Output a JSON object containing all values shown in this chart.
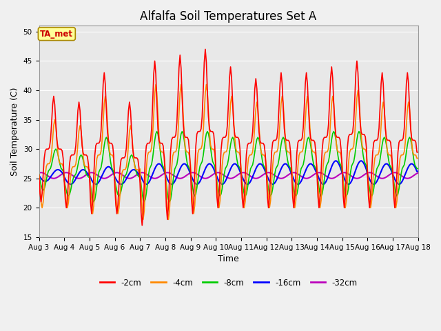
{
  "title": "Alfalfa Soil Temperatures Set A",
  "xlabel": "Time",
  "ylabel": "Soil Temperature (C)",
  "ylim": [
    15,
    51
  ],
  "yticks": [
    15,
    20,
    25,
    30,
    35,
    40,
    45,
    50
  ],
  "xlim_days": [
    3,
    18
  ],
  "xtick_days": [
    3,
    4,
    5,
    6,
    7,
    8,
    9,
    10,
    11,
    12,
    13,
    14,
    15,
    16,
    17,
    18
  ],
  "xtick_labels": [
    "Aug 3",
    "Aug 4",
    "Aug 5",
    "Aug 6",
    "Aug 7",
    "Aug 8",
    "Aug 9",
    "Aug 10",
    "Aug 11",
    "Aug 12",
    "Aug 13",
    "Aug 14",
    "Aug 15",
    "Aug 16",
    "Aug 17",
    "Aug 18"
  ],
  "annotation_text": "TA_met",
  "annotation_color": "#cc0000",
  "annotation_bg": "#ffff99",
  "annotation_border": "#aa8800",
  "series_colors": [
    "#ff0000",
    "#ff8800",
    "#00cc00",
    "#0000ff",
    "#bb00bb"
  ],
  "series_labels": [
    "-2cm",
    "-4cm",
    "-8cm",
    "-16cm",
    "-32cm"
  ],
  "bg_color": "#f0f0f0",
  "plot_bg": "#e8e8e8",
  "grid_color": "#ffffff",
  "title_fontsize": 12,
  "axis_label_fontsize": 9,
  "tick_fontsize": 7.5,
  "legend_fontsize": 8.5,
  "peak_2cm": [
    39,
    38,
    43,
    38,
    45,
    46,
    47,
    44,
    42,
    43,
    43,
    44,
    45,
    43,
    43
  ],
  "trough_2cm": [
    21,
    20,
    19,
    19,
    17,
    18,
    19,
    20,
    20,
    20,
    20,
    20,
    20,
    20,
    20
  ],
  "peak_4cm": [
    35,
    34,
    39,
    34,
    41,
    41,
    41,
    39,
    38,
    39,
    39,
    39,
    40,
    38,
    38
  ],
  "trough_4cm": [
    20,
    20,
    19,
    19,
    18,
    18,
    19,
    20,
    20,
    20,
    20,
    20,
    20,
    20,
    20
  ],
  "peak_8cm": [
    30,
    29,
    32,
    29,
    33,
    33,
    33,
    32,
    32,
    32,
    32,
    33,
    33,
    32,
    32
  ],
  "trough_8cm": [
    23,
    22,
    21,
    22,
    21,
    21,
    22,
    22,
    22,
    22,
    22,
    22,
    22,
    22,
    22
  ],
  "peak_16cm": [
    26.5,
    26.5,
    27.0,
    26.5,
    27.5,
    27.5,
    27.5,
    27.5,
    27.5,
    27.5,
    27.5,
    28,
    28,
    27.5,
    27.5
  ],
  "trough_16cm": [
    24.5,
    24,
    24,
    24,
    24,
    24,
    24,
    24,
    24,
    24,
    24,
    24,
    24,
    24,
    24
  ],
  "base_32": 25.5,
  "amp_32": 0.5
}
